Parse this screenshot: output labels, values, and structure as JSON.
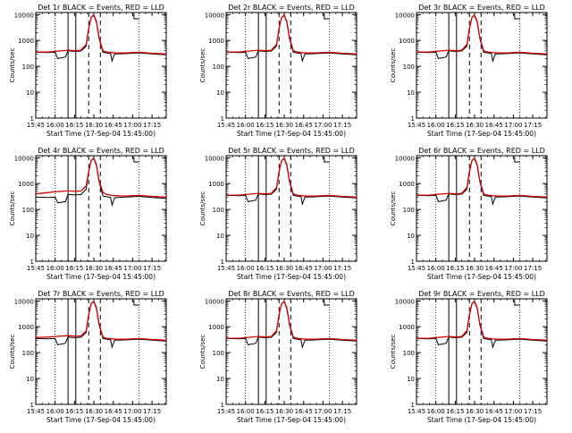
{
  "colors": {
    "events": "#000000",
    "lld": "#d40000",
    "axis": "#000000"
  },
  "common": {
    "xlabel": "Start Time (17-Sep-04 15:45:00)",
    "ylabel": "Counts/sec",
    "x_tick_labels": [
      "15:45",
      "16:00",
      "16:15",
      "16:30",
      "16:45",
      "17:00",
      "17:15"
    ],
    "y_tick_labels": [
      "1",
      "10",
      "100",
      "1000",
      "10000"
    ],
    "x_tick_minutes": [
      945,
      960,
      975,
      990,
      1005,
      1020,
      1035
    ],
    "xlim_minutes": [
      945,
      1046
    ],
    "ylim": [
      1,
      12000
    ],
    "yscale": "log",
    "solid_vlines_minutes": [
      970,
      976
    ],
    "dashed_vlines_minutes": [
      986,
      995
    ],
    "dotted_vlines_minutes": [
      960,
      1025
    ],
    "bracket_minutes": [
      1021,
      1025
    ]
  },
  "chart_data": [
    {
      "type": "line",
      "title": "Det 1r BLACK = Events, RED = LLD",
      "series": [
        {
          "name": "Events",
          "x": [
            945,
            955,
            960,
            962,
            968,
            970,
            974,
            976,
            980,
            984,
            986,
            988,
            990,
            992,
            994,
            997,
            1000,
            1003,
            1004,
            1006,
            1008,
            1015,
            1025,
            1035,
            1046
          ],
          "y": [
            350,
            340,
            350,
            200,
            230,
            400,
            380,
            380,
            390,
            600,
            3000,
            8000,
            9000,
            5000,
            1200,
            350,
            330,
            310,
            160,
            300,
            300,
            310,
            330,
            300,
            280
          ]
        },
        {
          "name": "LLD",
          "x": [
            945,
            955,
            960,
            970,
            976,
            980,
            984,
            986,
            988,
            990,
            992,
            994,
            997,
            1000,
            1004,
            1008,
            1015,
            1025,
            1035,
            1046
          ],
          "y": [
            360,
            360,
            380,
            420,
            400,
            420,
            700,
            3000,
            8000,
            9500,
            5500,
            1300,
            400,
            360,
            340,
            330,
            330,
            350,
            320,
            300
          ]
        }
      ]
    },
    {
      "type": "line",
      "title": "Det 2r BLACK = Events, RED = LLD",
      "series": [
        {
          "name": "Events",
          "x": [
            945,
            955,
            960,
            962,
            968,
            970,
            974,
            976,
            980,
            984,
            986,
            988,
            990,
            992,
            994,
            997,
            1000,
            1003,
            1004,
            1006,
            1008,
            1015,
            1025,
            1035,
            1046
          ],
          "y": [
            350,
            340,
            350,
            200,
            230,
            400,
            380,
            380,
            390,
            600,
            3000,
            8000,
            9000,
            5000,
            1200,
            350,
            330,
            310,
            160,
            300,
            300,
            310,
            330,
            300,
            280
          ]
        },
        {
          "name": "LLD",
          "x": [
            945,
            955,
            960,
            970,
            976,
            980,
            984,
            986,
            988,
            990,
            992,
            994,
            997,
            1000,
            1004,
            1008,
            1015,
            1025,
            1035,
            1046
          ],
          "y": [
            360,
            360,
            380,
            420,
            400,
            420,
            700,
            3000,
            8000,
            9500,
            5500,
            1300,
            400,
            360,
            340,
            330,
            330,
            350,
            320,
            300
          ]
        }
      ]
    },
    {
      "type": "line",
      "title": "Det 3r BLACK = Events, RED = LLD",
      "series": [
        {
          "name": "Events",
          "x": [
            945,
            955,
            960,
            962,
            968,
            970,
            974,
            976,
            980,
            984,
            986,
            988,
            990,
            992,
            994,
            997,
            1000,
            1003,
            1004,
            1006,
            1008,
            1015,
            1025,
            1035,
            1046
          ],
          "y": [
            350,
            340,
            350,
            200,
            230,
            400,
            380,
            380,
            390,
            600,
            3000,
            8000,
            9000,
            5000,
            1200,
            350,
            330,
            310,
            160,
            300,
            300,
            310,
            330,
            300,
            280
          ]
        },
        {
          "name": "LLD",
          "x": [
            945,
            955,
            960,
            970,
            976,
            980,
            984,
            986,
            988,
            990,
            992,
            994,
            997,
            1000,
            1004,
            1008,
            1015,
            1025,
            1035,
            1046
          ],
          "y": [
            360,
            360,
            380,
            420,
            400,
            420,
            700,
            3000,
            8000,
            9500,
            5500,
            1300,
            400,
            360,
            340,
            330,
            330,
            350,
            320,
            300
          ]
        }
      ]
    },
    {
      "type": "line",
      "title": "Det 4r BLACK = Events, RED = LLD",
      "series": [
        {
          "name": "Events",
          "x": [
            945,
            955,
            960,
            962,
            968,
            970,
            974,
            976,
            980,
            984,
            986,
            988,
            990,
            992,
            994,
            997,
            1000,
            1003,
            1004,
            1006,
            1008,
            1015,
            1025,
            1035,
            1046
          ],
          "y": [
            300,
            290,
            300,
            180,
            200,
            380,
            370,
            370,
            380,
            600,
            3000,
            8000,
            9000,
            5000,
            1200,
            330,
            310,
            290,
            150,
            280,
            290,
            300,
            320,
            290,
            270
          ]
        },
        {
          "name": "LLD",
          "x": [
            945,
            955,
            960,
            970,
            976,
            980,
            984,
            986,
            988,
            990,
            992,
            994,
            997,
            1000,
            1004,
            1008,
            1015,
            1025,
            1035,
            1046
          ],
          "y": [
            400,
            450,
            480,
            520,
            500,
            520,
            800,
            3000,
            8000,
            9500,
            5500,
            1300,
            450,
            380,
            350,
            340,
            330,
            350,
            320,
            300
          ]
        }
      ]
    },
    {
      "type": "line",
      "title": "Det 5r BLACK = Events, RED = LLD",
      "series": [
        {
          "name": "Events",
          "x": [
            945,
            955,
            960,
            962,
            968,
            970,
            974,
            976,
            980,
            984,
            986,
            988,
            990,
            992,
            994,
            997,
            1000,
            1003,
            1004,
            1006,
            1008,
            1015,
            1025,
            1035,
            1046
          ],
          "y": [
            350,
            340,
            350,
            200,
            230,
            400,
            380,
            380,
            390,
            600,
            3000,
            8000,
            9000,
            5000,
            1200,
            350,
            330,
            310,
            160,
            300,
            300,
            310,
            330,
            300,
            280
          ]
        },
        {
          "name": "LLD",
          "x": [
            945,
            955,
            960,
            970,
            976,
            980,
            984,
            986,
            988,
            990,
            992,
            994,
            997,
            1000,
            1004,
            1008,
            1015,
            1025,
            1035,
            1046
          ],
          "y": [
            360,
            360,
            380,
            420,
            400,
            420,
            700,
            3000,
            8000,
            9500,
            5500,
            1300,
            400,
            360,
            340,
            330,
            330,
            350,
            320,
            300
          ]
        }
      ]
    },
    {
      "type": "line",
      "title": "Det 6r BLACK = Events, RED = LLD",
      "series": [
        {
          "name": "Events",
          "x": [
            945,
            955,
            960,
            962,
            968,
            970,
            974,
            976,
            980,
            984,
            986,
            988,
            990,
            992,
            994,
            997,
            1000,
            1003,
            1004,
            1006,
            1008,
            1015,
            1025,
            1035,
            1046
          ],
          "y": [
            350,
            340,
            350,
            200,
            230,
            400,
            380,
            380,
            390,
            600,
            3000,
            8000,
            9000,
            5000,
            1200,
            350,
            330,
            310,
            160,
            300,
            300,
            310,
            330,
            300,
            280
          ]
        },
        {
          "name": "LLD",
          "x": [
            945,
            955,
            960,
            970,
            976,
            980,
            984,
            986,
            988,
            990,
            992,
            994,
            997,
            1000,
            1004,
            1008,
            1015,
            1025,
            1035,
            1046
          ],
          "y": [
            360,
            360,
            380,
            420,
            400,
            420,
            700,
            3000,
            8000,
            9500,
            5500,
            1300,
            400,
            360,
            340,
            330,
            330,
            350,
            320,
            300
          ]
        }
      ]
    },
    {
      "type": "line",
      "title": "Det 7r BLACK = Events, RED = LLD",
      "series": [
        {
          "name": "Events",
          "x": [
            945,
            955,
            960,
            962,
            968,
            970,
            974,
            976,
            980,
            984,
            986,
            988,
            990,
            992,
            994,
            997,
            1000,
            1003,
            1004,
            1006,
            1008,
            1015,
            1025,
            1035,
            1046
          ],
          "y": [
            350,
            340,
            350,
            200,
            230,
            400,
            380,
            380,
            390,
            600,
            3000,
            8000,
            9000,
            5000,
            1200,
            350,
            330,
            310,
            160,
            300,
            300,
            310,
            330,
            300,
            280
          ]
        },
        {
          "name": "LLD",
          "x": [
            945,
            955,
            960,
            970,
            976,
            980,
            984,
            986,
            988,
            990,
            992,
            994,
            997,
            1000,
            1004,
            1008,
            1015,
            1025,
            1035,
            1046
          ],
          "y": [
            380,
            400,
            420,
            450,
            430,
            440,
            700,
            3000,
            8000,
            9500,
            5500,
            1300,
            400,
            360,
            340,
            330,
            330,
            350,
            320,
            300
          ]
        }
      ]
    },
    {
      "type": "line",
      "title": "Det 8r BLACK = Events, RED = LLD",
      "series": [
        {
          "name": "Events",
          "x": [
            945,
            955,
            960,
            962,
            968,
            970,
            974,
            976,
            980,
            984,
            986,
            988,
            990,
            992,
            994,
            997,
            1000,
            1003,
            1004,
            1006,
            1008,
            1015,
            1025,
            1035,
            1046
          ],
          "y": [
            350,
            340,
            350,
            200,
            230,
            400,
            380,
            380,
            390,
            600,
            3000,
            8000,
            9000,
            5000,
            1200,
            350,
            330,
            310,
            160,
            300,
            300,
            310,
            330,
            300,
            280
          ]
        },
        {
          "name": "LLD",
          "x": [
            945,
            955,
            960,
            970,
            976,
            980,
            984,
            986,
            988,
            990,
            992,
            994,
            997,
            1000,
            1004,
            1008,
            1015,
            1025,
            1035,
            1046
          ],
          "y": [
            360,
            360,
            380,
            420,
            400,
            420,
            700,
            3000,
            8000,
            9500,
            5500,
            1300,
            400,
            360,
            340,
            330,
            330,
            350,
            320,
            300
          ]
        }
      ]
    },
    {
      "type": "line",
      "title": "Det 9r BLACK = Events, RED = LLD",
      "series": [
        {
          "name": "Events",
          "x": [
            945,
            955,
            960,
            962,
            968,
            970,
            974,
            976,
            980,
            984,
            986,
            988,
            990,
            992,
            994,
            997,
            1000,
            1003,
            1004,
            1006,
            1008,
            1015,
            1025,
            1035,
            1046
          ],
          "y": [
            350,
            340,
            350,
            200,
            230,
            400,
            380,
            380,
            390,
            600,
            3000,
            8000,
            9000,
            5000,
            1200,
            350,
            330,
            310,
            160,
            300,
            300,
            310,
            330,
            300,
            280
          ]
        },
        {
          "name": "LLD",
          "x": [
            945,
            955,
            960,
            970,
            976,
            980,
            984,
            986,
            988,
            990,
            992,
            994,
            997,
            1000,
            1004,
            1008,
            1015,
            1025,
            1035,
            1046
          ],
          "y": [
            360,
            360,
            380,
            420,
            400,
            420,
            700,
            3000,
            8000,
            9500,
            5500,
            1300,
            400,
            360,
            340,
            330,
            330,
            350,
            320,
            300
          ]
        }
      ]
    }
  ]
}
